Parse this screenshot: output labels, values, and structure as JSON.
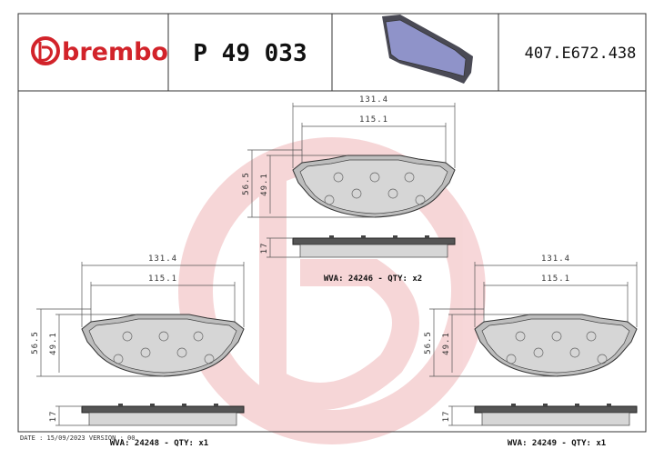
{
  "header": {
    "brand": "brembo",
    "part_number": "P 49 033",
    "code": "407.E672.438"
  },
  "pads": [
    {
      "width": "131.4",
      "inner_width": "115.1",
      "height": "56.5",
      "inner_height": "49.1",
      "thickness": "17",
      "label": "WVA: 24246 - QTY: x2"
    },
    {
      "width": "131.4",
      "inner_width": "115.1",
      "height": "56.5",
      "inner_height": "49.1",
      "thickness": "17",
      "label": "WVA: 24248 - QTY: x1"
    },
    {
      "width": "131.4",
      "inner_width": "115.1",
      "height": "56.5",
      "inner_height": "49.1",
      "thickness": "17",
      "label": "WVA: 24249 - QTY: x1"
    }
  ],
  "footer": "DATE : 15/09/2023 VERSION : 00"
}
